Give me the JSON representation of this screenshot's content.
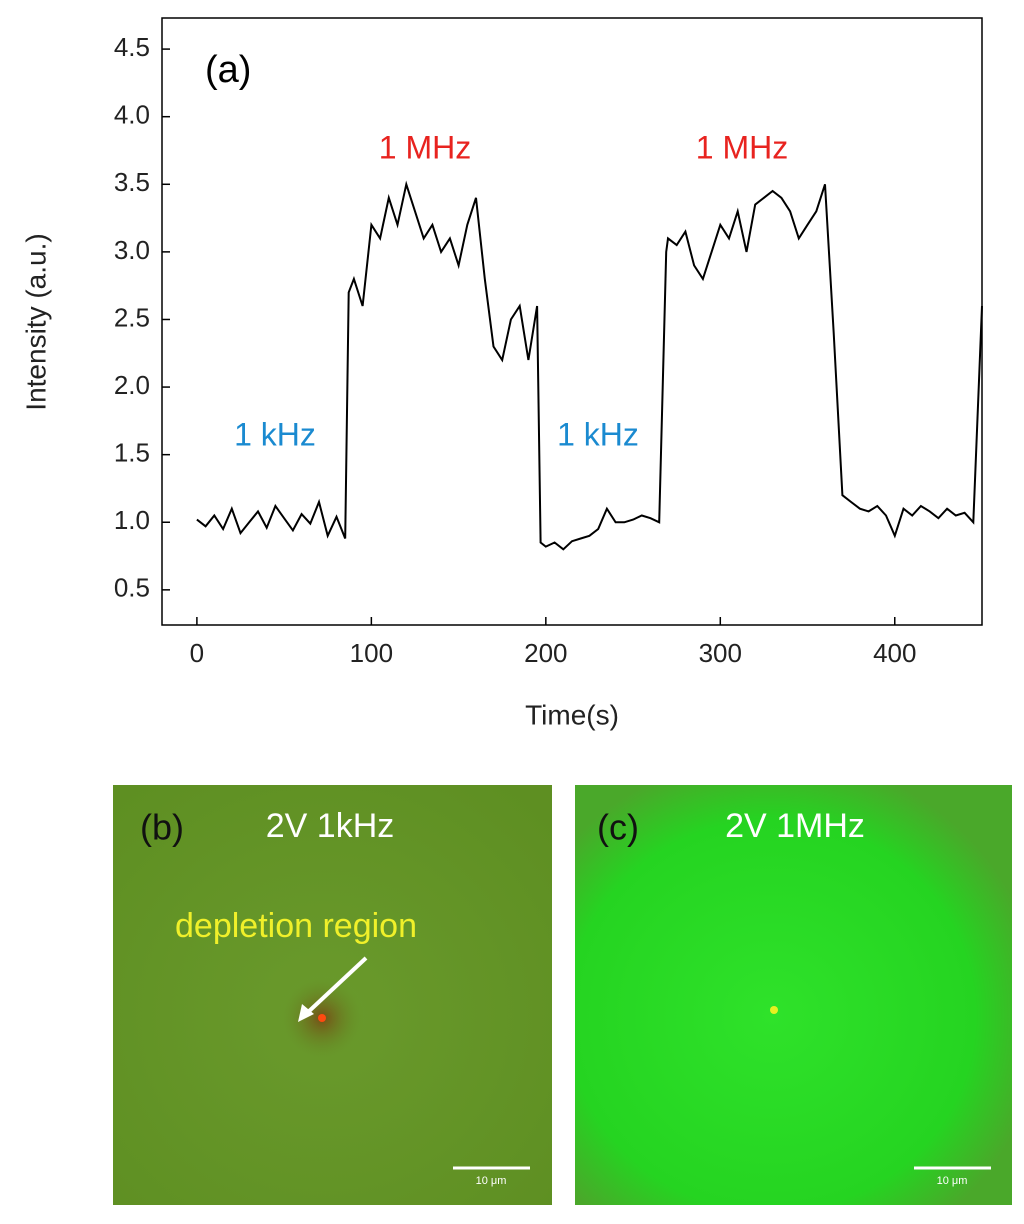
{
  "chart_data": {
    "type": "line",
    "panel_label": "(a)",
    "xlabel": "Time(s)",
    "ylabel": "Intensity (a.u.)",
    "x": [
      0,
      5,
      10,
      15,
      20,
      25,
      30,
      35,
      40,
      45,
      50,
      55,
      60,
      65,
      70,
      75,
      80,
      85,
      87,
      90,
      95,
      100,
      105,
      110,
      115,
      120,
      125,
      130,
      135,
      140,
      145,
      150,
      155,
      160,
      165,
      170,
      175,
      180,
      185,
      190,
      195,
      197,
      200,
      205,
      210,
      215,
      220,
      225,
      230,
      235,
      240,
      245,
      250,
      255,
      260,
      265,
      269,
      270,
      275,
      280,
      285,
      290,
      295,
      300,
      305,
      310,
      315,
      320,
      325,
      330,
      335,
      340,
      345,
      350,
      355,
      360,
      365,
      370,
      375,
      380,
      385,
      390,
      395,
      400,
      405,
      410,
      415,
      420,
      425,
      430,
      435,
      440,
      445,
      450
    ],
    "series": [
      {
        "name": "Intensity",
        "color": "#000000",
        "values": [
          1.02,
          0.97,
          1.05,
          0.95,
          1.1,
          0.92,
          1.0,
          1.08,
          0.96,
          1.12,
          1.03,
          0.94,
          1.06,
          0.99,
          1.15,
          0.9,
          1.04,
          0.88,
          2.7,
          2.8,
          2.6,
          3.2,
          3.1,
          3.4,
          3.2,
          3.5,
          3.3,
          3.1,
          3.2,
          3.0,
          3.1,
          2.9,
          3.2,
          3.4,
          2.8,
          2.3,
          2.2,
          2.5,
          2.6,
          2.2,
          2.6,
          0.85,
          0.82,
          0.85,
          0.8,
          0.86,
          0.88,
          0.9,
          0.95,
          1.1,
          1.0,
          1.0,
          1.02,
          1.05,
          1.03,
          1.0,
          3.0,
          3.1,
          3.05,
          3.15,
          2.9,
          2.8,
          3.0,
          3.2,
          3.1,
          3.3,
          3.0,
          3.35,
          3.4,
          3.45,
          3.4,
          3.3,
          3.1,
          3.2,
          3.3,
          3.5,
          2.4,
          1.2,
          1.15,
          1.1,
          1.08,
          1.12,
          1.05,
          0.9,
          1.1,
          1.05,
          1.12,
          1.08,
          1.03,
          1.1,
          1.05,
          1.07,
          1.0,
          2.6
        ]
      }
    ],
    "xlim": [
      -20,
      450
    ],
    "xticks": [
      0,
      100,
      200,
      300,
      400
    ],
    "ylim": [
      0.24,
      4.73
    ],
    "yticks": [
      0.5,
      {
        "value": 1.0,
        "label": "1.0"
      },
      1.5,
      {
        "value": 2.0,
        "label": "2.0"
      },
      2.5,
      {
        "value": 3.0,
        "label": "3.0"
      },
      3.5,
      {
        "value": 4.0,
        "label": "4.0"
      },
      4.5
    ],
    "annotations": [
      {
        "text": "1 kHz",
        "color": "#1a8ad0"
      },
      {
        "text": "1 MHz",
        "color": "#e8231f"
      },
      {
        "text": "1 kHz",
        "color": "#1a8ad0"
      },
      {
        "text": "1 MHz",
        "color": "#e8231f"
      }
    ]
  },
  "panels": [
    {
      "label": "(b)",
      "title": "2V 1kHz",
      "annotation": "depletion region",
      "scale_bar": "10 μm"
    },
    {
      "label": "(c)",
      "title": "2V 1MHz",
      "scale_bar": "10 μm"
    }
  ]
}
